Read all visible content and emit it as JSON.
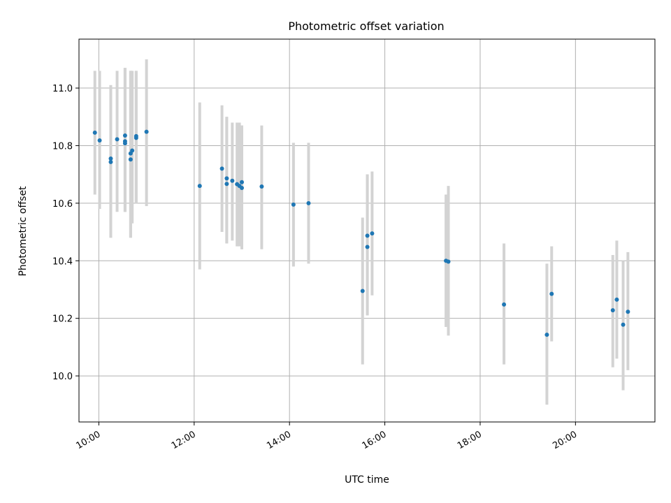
{
  "chart_data": {
    "type": "scatter",
    "title": "Photometric offset variation",
    "xlabel": "UTC time",
    "ylabel": "Photometric offset",
    "x_unit": "time-of-day",
    "xlim": [
      "09:35",
      "21:40"
    ],
    "ylim": [
      9.84,
      11.17
    ],
    "grid": true,
    "colors": {
      "point": "#1f77b4",
      "errorbar": "#d3d3d3",
      "grid": "#b0b0b0"
    },
    "x_ticks": [
      "10:00",
      "12:00",
      "14:00",
      "16:00",
      "18:00",
      "20:00"
    ],
    "y_ticks": [
      "10.0",
      "10.2",
      "10.4",
      "10.6",
      "10.8",
      "11.0"
    ],
    "points": [
      {
        "t": "09:55",
        "y": 10.845,
        "lo": 10.63,
        "hi": 11.06
      },
      {
        "t": "10:01",
        "y": 10.818,
        "lo": 10.58,
        "hi": 11.06
      },
      {
        "t": "10:15",
        "y": 10.743,
        "lo": 10.48,
        "hi": 11.01
      },
      {
        "t": "10:15",
        "y": 10.755,
        "lo": 10.48,
        "hi": 11.01
      },
      {
        "t": "10:23",
        "y": 10.822,
        "lo": 10.57,
        "hi": 11.06
      },
      {
        "t": "10:33",
        "y": 10.835,
        "lo": 10.57,
        "hi": 11.07
      },
      {
        "t": "10:33",
        "y": 10.815,
        "lo": 10.57,
        "hi": 11.07
      },
      {
        "t": "10:33",
        "y": 10.808,
        "lo": 10.57,
        "hi": 11.07
      },
      {
        "t": "10:40",
        "y": 10.752,
        "lo": 10.48,
        "hi": 11.06
      },
      {
        "t": "10:40",
        "y": 10.773,
        "lo": 10.48,
        "hi": 11.06
      },
      {
        "t": "10:42",
        "y": 10.783,
        "lo": 10.53,
        "hi": 11.06
      },
      {
        "t": "10:47",
        "y": 10.827,
        "lo": 10.6,
        "hi": 11.06
      },
      {
        "t": "10:47",
        "y": 10.833,
        "lo": 10.6,
        "hi": 11.06
      },
      {
        "t": "11:00",
        "y": 10.848,
        "lo": 10.59,
        "hi": 11.1
      },
      {
        "t": "12:07",
        "y": 10.66,
        "lo": 10.37,
        "hi": 10.95
      },
      {
        "t": "12:35",
        "y": 10.72,
        "lo": 10.5,
        "hi": 10.94
      },
      {
        "t": "12:41",
        "y": 10.686,
        "lo": 10.46,
        "hi": 10.9
      },
      {
        "t": "12:41",
        "y": 10.667,
        "lo": 10.46,
        "hi": 10.9
      },
      {
        "t": "12:48",
        "y": 10.678,
        "lo": 10.47,
        "hi": 10.88
      },
      {
        "t": "12:54",
        "y": 10.666,
        "lo": 10.45,
        "hi": 10.88
      },
      {
        "t": "12:57",
        "y": 10.66,
        "lo": 10.45,
        "hi": 10.88
      },
      {
        "t": "13:00",
        "y": 10.673,
        "lo": 10.44,
        "hi": 10.87
      },
      {
        "t": "13:00",
        "y": 10.653,
        "lo": 10.44,
        "hi": 10.87
      },
      {
        "t": "13:25",
        "y": 10.658,
        "lo": 10.44,
        "hi": 10.87
      },
      {
        "t": "14:05",
        "y": 10.595,
        "lo": 10.38,
        "hi": 10.81
      },
      {
        "t": "14:24",
        "y": 10.6,
        "lo": 10.39,
        "hi": 10.81
      },
      {
        "t": "15:32",
        "y": 10.295,
        "lo": 10.04,
        "hi": 10.55
      },
      {
        "t": "15:38",
        "y": 10.487,
        "lo": 10.21,
        "hi": 10.7
      },
      {
        "t": "15:38",
        "y": 10.448,
        "lo": 10.21,
        "hi": 10.7
      },
      {
        "t": "15:44",
        "y": 10.495,
        "lo": 10.28,
        "hi": 10.71
      },
      {
        "t": "17:17",
        "y": 10.4,
        "lo": 10.17,
        "hi": 10.63
      },
      {
        "t": "17:20",
        "y": 10.397,
        "lo": 10.14,
        "hi": 10.66
      },
      {
        "t": "18:30",
        "y": 10.248,
        "lo": 10.04,
        "hi": 10.46
      },
      {
        "t": "19:24",
        "y": 10.143,
        "lo": 9.9,
        "hi": 10.39
      },
      {
        "t": "19:30",
        "y": 10.285,
        "lo": 10.12,
        "hi": 10.45
      },
      {
        "t": "20:47",
        "y": 10.228,
        "lo": 10.03,
        "hi": 10.42
      },
      {
        "t": "20:52",
        "y": 10.265,
        "lo": 10.06,
        "hi": 10.47
      },
      {
        "t": "21:00",
        "y": 10.178,
        "lo": 9.95,
        "hi": 10.4
      },
      {
        "t": "21:06",
        "y": 10.223,
        "lo": 10.02,
        "hi": 10.43
      }
    ]
  }
}
